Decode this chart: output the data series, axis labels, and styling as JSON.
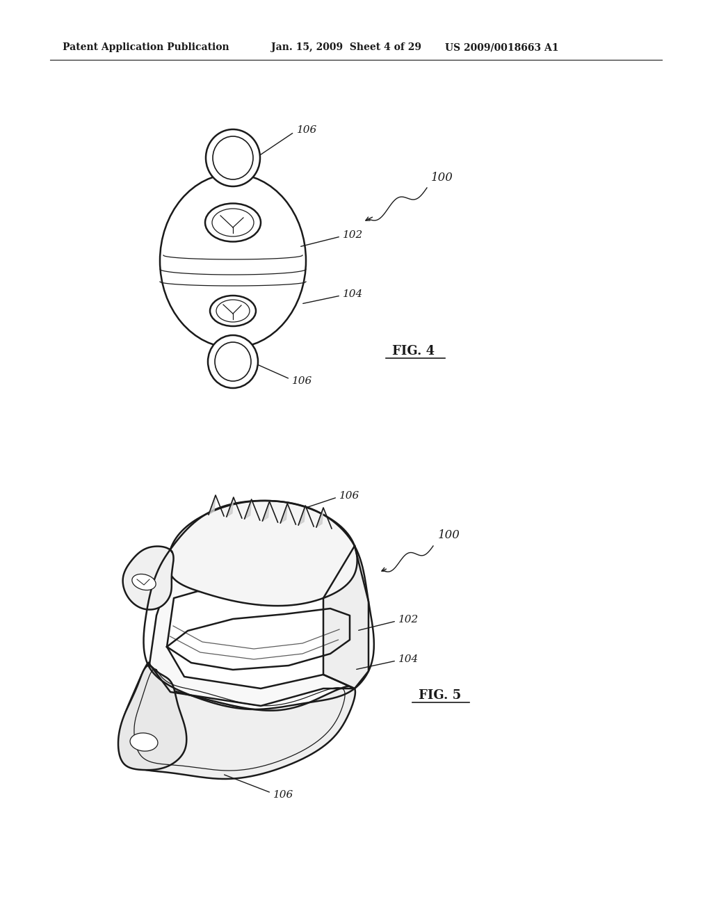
{
  "bg_color": "#ffffff",
  "line_color": "#1a1a1a",
  "header_left": "Patent Application Publication",
  "header_mid": "Jan. 15, 2009  Sheet 4 of 29",
  "header_right": "US 2009/0018663 A1",
  "fig4_label": "FIG. 4",
  "fig5_label": "FIG. 5"
}
